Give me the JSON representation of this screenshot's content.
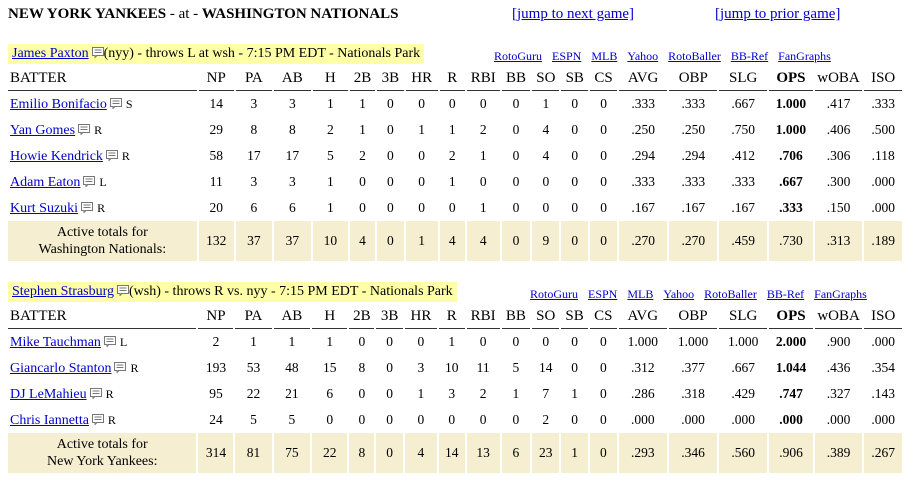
{
  "header": {
    "away": "NEW YORK YANKEES",
    "sep": "- at -",
    "home": "WASHINGTON NATIONALS",
    "next_link": "[jump to next game]",
    "prior_link": "[jump to prior game]"
  },
  "columns": [
    "BATTER",
    "NP",
    "PA",
    "AB",
    "H",
    "2B",
    "3B",
    "HR",
    "R",
    "RBI",
    "BB",
    "SO",
    "SB",
    "CS",
    "AVG",
    "OBP",
    "SLG",
    "OPS",
    "wOBA",
    "ISO"
  ],
  "links": [
    "RotoGuru",
    "ESPN",
    "MLB",
    "Yahoo",
    "RotoBaller",
    "BB-Ref",
    "FanGraphs"
  ],
  "matchups": [
    {
      "pitcher_name": "James Paxton",
      "pitcher_info": "(nyy) - throws L at wsh - 7:15 PM EDT - Nationals Park",
      "batters": [
        {
          "name": "Emilio Bonifacio",
          "hand": "S",
          "stats": [
            "14",
            "3",
            "3",
            "1",
            "1",
            "0",
            "0",
            "0",
            "0",
            "0",
            "1",
            "0",
            "0",
            ".333",
            ".333",
            ".667",
            "1.000",
            ".417",
            ".333"
          ]
        },
        {
          "name": "Yan Gomes",
          "hand": "R",
          "stats": [
            "29",
            "8",
            "8",
            "2",
            "1",
            "0",
            "1",
            "1",
            "2",
            "0",
            "4",
            "0",
            "0",
            ".250",
            ".250",
            ".750",
            "1.000",
            ".406",
            ".500"
          ]
        },
        {
          "name": "Howie Kendrick",
          "hand": "R",
          "stats": [
            "58",
            "17",
            "17",
            "5",
            "2",
            "0",
            "0",
            "2",
            "1",
            "0",
            "4",
            "0",
            "0",
            ".294",
            ".294",
            ".412",
            ".706",
            ".306",
            ".118"
          ]
        },
        {
          "name": "Adam Eaton",
          "hand": "L",
          "stats": [
            "11",
            "3",
            "3",
            "1",
            "0",
            "0",
            "0",
            "1",
            "0",
            "0",
            "0",
            "0",
            "0",
            ".333",
            ".333",
            ".333",
            ".667",
            ".300",
            ".000"
          ]
        },
        {
          "name": "Kurt Suzuki",
          "hand": "R",
          "stats": [
            "20",
            "6",
            "6",
            "1",
            "0",
            "0",
            "0",
            "0",
            "1",
            "0",
            "0",
            "0",
            "0",
            ".167",
            ".167",
            ".167",
            ".333",
            ".150",
            ".000"
          ]
        }
      ],
      "totals_label_1": "Active totals for",
      "totals_label_2": "Washington Nationals:",
      "totals": [
        "132",
        "37",
        "37",
        "10",
        "4",
        "0",
        "1",
        "4",
        "4",
        "0",
        "9",
        "0",
        "0",
        ".270",
        ".270",
        ".459",
        ".730",
        ".313",
        ".189"
      ]
    },
    {
      "pitcher_name": "Stephen Strasburg",
      "pitcher_info": "(wsh) - throws R vs. nyy - 7:15 PM EDT - Nationals Park",
      "batters": [
        {
          "name": "Mike Tauchman",
          "hand": "L",
          "stats": [
            "2",
            "1",
            "1",
            "1",
            "0",
            "0",
            "0",
            "1",
            "0",
            "0",
            "0",
            "0",
            "0",
            "1.000",
            "1.000",
            "1.000",
            "2.000",
            ".900",
            ".000"
          ]
        },
        {
          "name": "Giancarlo Stanton",
          "hand": "R",
          "stats": [
            "193",
            "53",
            "48",
            "15",
            "8",
            "0",
            "3",
            "10",
            "11",
            "5",
            "14",
            "0",
            "0",
            ".312",
            ".377",
            ".667",
            "1.044",
            ".436",
            ".354"
          ]
        },
        {
          "name": "DJ LeMahieu",
          "hand": "R",
          "stats": [
            "95",
            "22",
            "21",
            "6",
            "0",
            "0",
            "1",
            "3",
            "2",
            "1",
            "7",
            "1",
            "0",
            ".286",
            ".318",
            ".429",
            ".747",
            ".327",
            ".143"
          ]
        },
        {
          "name": "Chris Iannetta",
          "hand": "R",
          "stats": [
            "24",
            "5",
            "5",
            "0",
            "0",
            "0",
            "0",
            "0",
            "0",
            "0",
            "2",
            "0",
            "0",
            ".000",
            ".000",
            ".000",
            ".000",
            ".000",
            ".000"
          ]
        }
      ],
      "totals_label_1": "Active totals for",
      "totals_label_2": "New York Yankees:",
      "totals": [
        "314",
        "81",
        "75",
        "22",
        "8",
        "0",
        "4",
        "14",
        "13",
        "6",
        "23",
        "1",
        "0",
        ".293",
        ".346",
        ".560",
        ".906",
        ".389",
        ".267"
      ]
    }
  ]
}
